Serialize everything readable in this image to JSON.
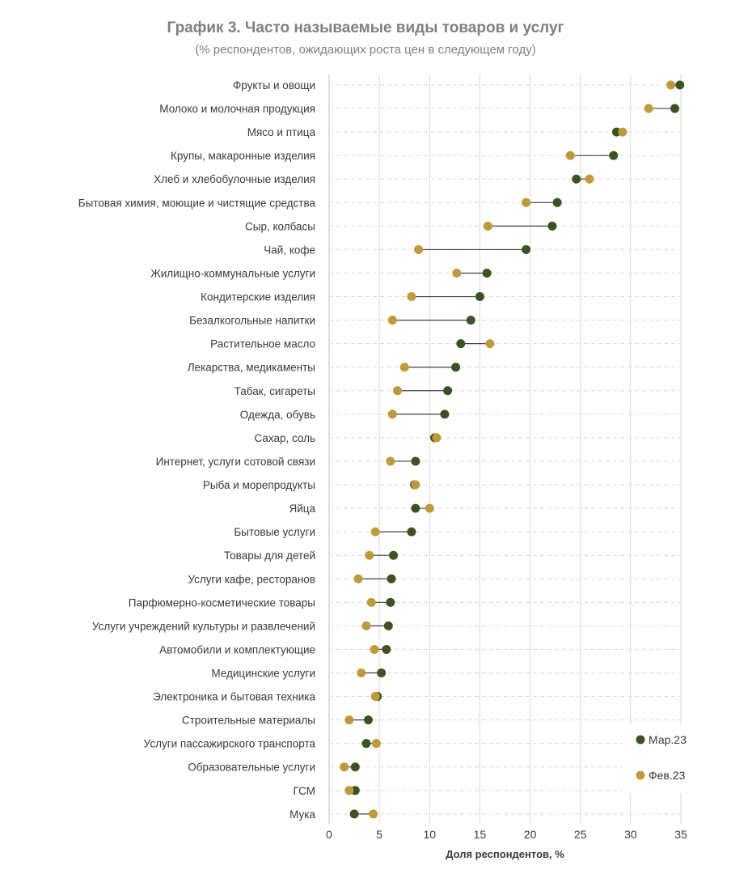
{
  "chart_data": {
    "type": "dumbbell",
    "title": "График 3. Часто называемые виды товаров и услуг",
    "subtitle": "(% респондентов, ожидающих роста цен в следующем году)",
    "xlabel": "Доля респондентов, %",
    "xlim": [
      0,
      35
    ],
    "xticks": [
      0,
      5,
      10,
      15,
      20,
      25,
      30,
      35
    ],
    "grid": "vertical solid, horizontal dashed",
    "legend_position": "bottom-right",
    "categories": [
      "Фрукты и овощи",
      "Молоко и молочная продукция",
      "Мясо и птица",
      "Крупы, макаронные изделия",
      "Хлеб и хлебобулочные изделия",
      "Бытовая химия, моющие и чистящие средства",
      "Сыр, колбасы",
      "Чай, кофе",
      "Жилищно-коммунальные услуги",
      "Кондитерские изделия",
      "Безалкогольные напитки",
      "Растительное масло",
      "Лекарства, медикаменты",
      "Табак, сигареты",
      "Одежда, обувь",
      "Сахар, соль",
      "Интернет, услуги сотовой связи",
      "Рыба и морепродукты",
      "Яйца",
      "Бытовые услуги",
      "Товары для детей",
      "Услуги кафе, ресторанов",
      "Парфюмерно-косметические товары",
      "Услуги учреждений культуры и развлечений",
      "Автомобили и комплектующие",
      "Медицинские услуги",
      "Электроника и бытовая техника",
      "Строительные материалы",
      "Услуги пассажирского транспорта",
      "Образовательные услуги",
      "ГСМ",
      "Мука"
    ],
    "series": [
      {
        "name": "Мар.23",
        "color": "#3b5323",
        "values": [
          34.9,
          34.4,
          28.6,
          28.3,
          24.6,
          22.7,
          22.2,
          19.6,
          15.7,
          15.0,
          14.1,
          13.1,
          12.6,
          11.8,
          11.5,
          10.5,
          8.6,
          8.5,
          8.6,
          8.2,
          6.4,
          6.2,
          6.1,
          5.9,
          5.7,
          5.2,
          4.8,
          3.9,
          3.7,
          2.6,
          2.6,
          2.5
        ]
      },
      {
        "name": "Фев.23",
        "color": "#c09a3a",
        "values": [
          34.0,
          31.8,
          29.2,
          24.0,
          25.9,
          19.6,
          15.8,
          8.9,
          12.7,
          8.2,
          6.3,
          16.0,
          7.5,
          6.8,
          6.3,
          10.7,
          6.1,
          8.6,
          10.0,
          4.6,
          4.0,
          2.9,
          4.2,
          3.7,
          4.5,
          3.2,
          4.6,
          2.0,
          4.7,
          1.5,
          2.0,
          4.4
        ]
      }
    ]
  }
}
